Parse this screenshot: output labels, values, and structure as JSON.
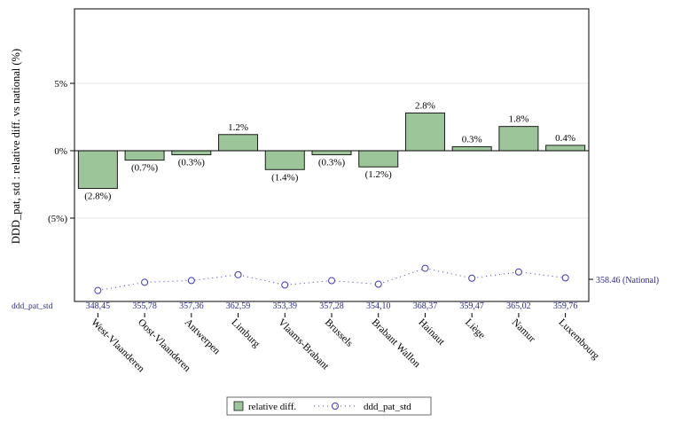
{
  "colors": {
    "bar_fill": "#9dc59a",
    "bar_stroke": "#1a1a1a",
    "dot_series": "#3a3ab4",
    "axis_text": "#000000",
    "grid": "#e6e6e6",
    "table_text": "#2b2b8f"
  },
  "chart_data": {
    "type": "bar",
    "ylabel": "DDD_pat, std : relative diff. vs national (%)",
    "ylim": [
      -10.0,
      10.5
    ],
    "yticks": [
      {
        "value": 5,
        "label": "5%"
      },
      {
        "value": 0,
        "label": "0%"
      },
      {
        "value": -5,
        "label": "(5%)"
      }
    ],
    "grid": true,
    "categories": [
      "West-Vlaanderen",
      "Oost-Vlaanderen",
      "Antwerpen",
      "Limburg",
      "Vlaams-Brabant",
      "Brussels",
      "Brabant Wallon",
      "Hainaut",
      "Liège",
      "Namur",
      "Luxembourg"
    ],
    "series": [
      {
        "name": "relative diff.",
        "values": [
          -2.8,
          -0.7,
          -0.3,
          1.2,
          -1.4,
          -0.3,
          -1.2,
          2.8,
          0.3,
          1.8,
          0.4
        ],
        "data_labels": [
          "(2.8%)",
          "(0.7%)",
          "(0.3%)",
          "1.2%",
          "(1.4%)",
          "(0.3%)",
          "(1.2%)",
          "2.8%",
          "0.3%",
          "1.8%",
          "0.4%"
        ]
      },
      {
        "name": "ddd_pat_std",
        "values": [
          348.45,
          355.78,
          357.36,
          362.59,
          353.39,
          357.28,
          354.1,
          368.37,
          359.47,
          365.02,
          359.76
        ],
        "value_labels": [
          "348,45",
          "355,78",
          "357,36",
          "362,59",
          "353,39",
          "357,28",
          "354,10",
          "368,37",
          "359,47",
          "365,02",
          "359,76"
        ]
      }
    ],
    "national": {
      "value": 358.46,
      "label": "358.46 (National)"
    },
    "table_row_label": "ddd_pat_std",
    "legend": {
      "position": "bottom-center",
      "items": [
        {
          "label": "relative diff.",
          "kind": "bar"
        },
        {
          "label": "ddd_pat_std",
          "kind": "dotted-line-circle"
        }
      ]
    }
  }
}
